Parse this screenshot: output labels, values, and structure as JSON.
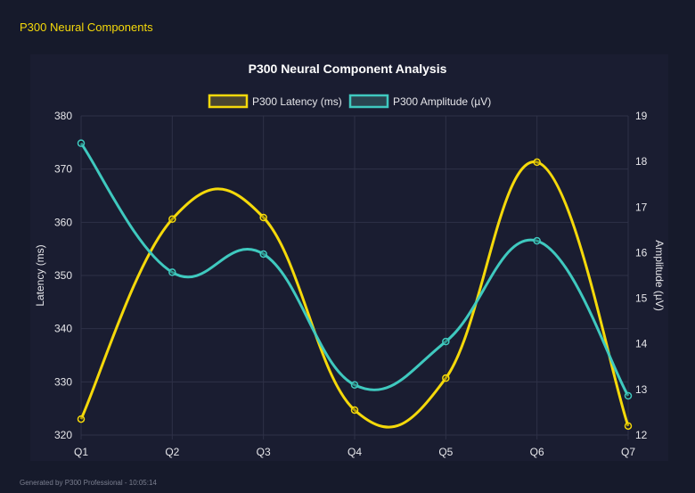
{
  "header": {
    "title": "P300 Neural Components"
  },
  "footer": {
    "text": "Generated by P300 Professional - 10:05:14"
  },
  "chart_data": {
    "type": "line",
    "title": "P300 Neural Component Analysis",
    "categories": [
      "Q1",
      "Q2",
      "Q3",
      "Q4",
      "Q5",
      "Q6",
      "Q7"
    ],
    "series": [
      {
        "name": "P300 Latency (ms)",
        "axis": "left",
        "color": "#f5d90a",
        "values": [
          323.0,
          360.6,
          360.9,
          324.7,
          330.7,
          371.3,
          321.7
        ]
      },
      {
        "name": "P300 Amplitude (µV)",
        "axis": "right",
        "color": "#3fc9bf",
        "values": [
          18.4,
          15.57,
          15.97,
          13.1,
          14.05,
          16.26,
          12.86
        ]
      }
    ],
    "y_left": {
      "label": "Latency (ms)",
      "range": [
        320,
        380
      ],
      "ticks": [
        320,
        330,
        340,
        350,
        360,
        370,
        380
      ]
    },
    "y_right": {
      "label": "Amplitude (µV)",
      "range": [
        12,
        19
      ],
      "ticks": [
        12,
        13,
        14,
        15,
        16,
        17,
        18,
        19
      ]
    },
    "grid": true,
    "legend": "top",
    "smooth": true
  }
}
